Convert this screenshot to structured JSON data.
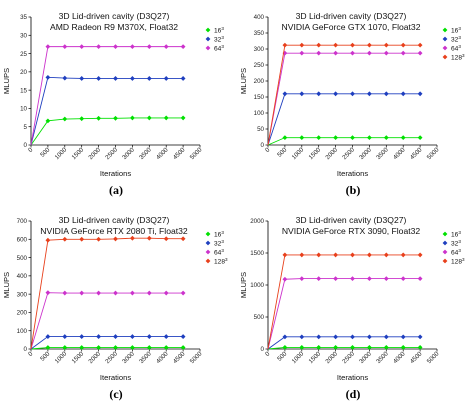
{
  "figure": {
    "panels": [
      {
        "label": "(a)"
      },
      {
        "label": "(b)"
      },
      {
        "label": "(c)"
      },
      {
        "label": "(d)"
      }
    ]
  },
  "chart_data": [
    {
      "type": "line",
      "title": "3D Lid-driven cavity (D3Q27)",
      "subtitle": "AMD Radeon R9 M370X, Float32",
      "xlabel": "Iterations",
      "ylabel": "MLUPS",
      "xlim": [
        0,
        5000
      ],
      "ylim": [
        0,
        35
      ],
      "xticks": [
        0,
        500,
        1000,
        1500,
        2000,
        2500,
        3000,
        3500,
        4000,
        4500,
        5000
      ],
      "yticks": [
        0,
        5,
        10,
        15,
        20,
        25,
        30,
        35
      ],
      "legend_position": "top-right",
      "x": [
        0,
        500,
        1000,
        1500,
        2000,
        2500,
        3000,
        3500,
        4000,
        4500
      ],
      "series": [
        {
          "name": "16³",
          "color": "#00e000",
          "marker": "diamond",
          "values": [
            0,
            6.6,
            7.1,
            7.2,
            7.3,
            7.3,
            7.4,
            7.4,
            7.4,
            7.4
          ]
        },
        {
          "name": "32³",
          "color": "#1f3fbf",
          "marker": "diamond",
          "values": [
            0,
            18.5,
            18.3,
            18.2,
            18.2,
            18.2,
            18.2,
            18.2,
            18.2,
            18.2
          ]
        },
        {
          "name": "64³",
          "color": "#cc33cc",
          "marker": "diamond",
          "values": [
            0,
            26.9,
            26.9,
            26.9,
            26.9,
            26.9,
            26.9,
            26.9,
            26.9,
            26.9
          ]
        }
      ]
    },
    {
      "type": "line",
      "title": "3D Lid-driven cavity (D3Q27)",
      "subtitle": "NVIDIA GeForce GTX 1070, Float32",
      "xlabel": "Iterations",
      "ylabel": "MLUPS",
      "xlim": [
        0,
        5000
      ],
      "ylim": [
        0,
        400
      ],
      "xticks": [
        0,
        500,
        1000,
        1500,
        2000,
        2500,
        3000,
        3500,
        4000,
        4500,
        5000
      ],
      "yticks": [
        0,
        50,
        100,
        150,
        200,
        250,
        300,
        350,
        400
      ],
      "legend_position": "top-right",
      "x": [
        0,
        500,
        1000,
        1500,
        2000,
        2500,
        3000,
        3500,
        4000,
        4500
      ],
      "series": [
        {
          "name": "16³",
          "color": "#00e000",
          "marker": "diamond",
          "values": [
            0,
            23,
            23,
            23,
            23,
            23,
            23,
            23,
            23,
            23
          ]
        },
        {
          "name": "32³",
          "color": "#1f3fbf",
          "marker": "diamond",
          "values": [
            0,
            160,
            160,
            160,
            160,
            160,
            160,
            160,
            160,
            160
          ]
        },
        {
          "name": "64³",
          "color": "#cc33cc",
          "marker": "diamond",
          "values": [
            0,
            287,
            287,
            287,
            287,
            287,
            287,
            287,
            287,
            287
          ]
        },
        {
          "name": "128³",
          "color": "#e8401c",
          "marker": "diamond",
          "values": [
            0,
            312,
            312,
            312,
            312,
            312,
            312,
            312,
            312,
            312
          ]
        }
      ]
    },
    {
      "type": "line",
      "title": "3D Lid-driven cavity (D3Q27)",
      "subtitle": "NVIDIA GeForce RTX 2080 Ti, Float32",
      "xlabel": "Iterations",
      "ylabel": "MLUPS",
      "xlim": [
        0,
        5000
      ],
      "ylim": [
        0,
        700
      ],
      "xticks": [
        0,
        500,
        1000,
        1500,
        2000,
        2500,
        3000,
        3500,
        4000,
        4500,
        5000
      ],
      "yticks": [
        0,
        100,
        200,
        300,
        400,
        500,
        600,
        700
      ],
      "legend_position": "top-right",
      "x": [
        0,
        500,
        1000,
        1500,
        2000,
        2500,
        3000,
        3500,
        4000,
        4500
      ],
      "series": [
        {
          "name": "16³",
          "color": "#00e000",
          "marker": "diamond",
          "values": [
            0,
            8,
            8,
            8,
            8,
            8,
            8,
            8,
            8,
            8
          ]
        },
        {
          "name": "32³",
          "color": "#1f3fbf",
          "marker": "diamond",
          "values": [
            0,
            68,
            68,
            68,
            68,
            68,
            68,
            68,
            68,
            68
          ]
        },
        {
          "name": "64³",
          "color": "#cc33cc",
          "marker": "diamond",
          "values": [
            0,
            308,
            306,
            306,
            306,
            306,
            306,
            306,
            306,
            306
          ]
        },
        {
          "name": "128³",
          "color": "#e8401c",
          "marker": "diamond",
          "values": [
            0,
            595,
            600,
            600,
            600,
            602,
            606,
            606,
            603,
            603
          ]
        }
      ]
    },
    {
      "type": "line",
      "title": "3D Lid-driven cavity (D3Q27)",
      "subtitle": "NVIDIA GeForce RTX 3090, Float32",
      "xlabel": "Iterations",
      "ylabel": "MLUPS",
      "xlim": [
        0,
        5000
      ],
      "ylim": [
        0,
        2000
      ],
      "xticks": [
        0,
        500,
        1000,
        1500,
        2000,
        2500,
        3000,
        3500,
        4000,
        4500,
        5000
      ],
      "yticks": [
        0,
        500,
        1000,
        1500,
        2000
      ],
      "legend_position": "top-right",
      "x": [
        0,
        500,
        1000,
        1500,
        2000,
        2500,
        3000,
        3500,
        4000,
        4500
      ],
      "series": [
        {
          "name": "16³",
          "color": "#00e000",
          "marker": "diamond",
          "values": [
            0,
            25,
            25,
            25,
            25,
            25,
            25,
            25,
            25,
            25
          ]
        },
        {
          "name": "32³",
          "color": "#1f3fbf",
          "marker": "diamond",
          "values": [
            0,
            190,
            190,
            190,
            190,
            190,
            190,
            190,
            190,
            190
          ]
        },
        {
          "name": "64³",
          "color": "#cc33cc",
          "marker": "diamond",
          "values": [
            0,
            1090,
            1100,
            1100,
            1100,
            1100,
            1100,
            1100,
            1100,
            1100
          ]
        },
        {
          "name": "128³",
          "color": "#e8401c",
          "marker": "diamond",
          "values": [
            0,
            1470,
            1470,
            1470,
            1470,
            1470,
            1470,
            1470,
            1470,
            1470
          ]
        }
      ]
    }
  ]
}
